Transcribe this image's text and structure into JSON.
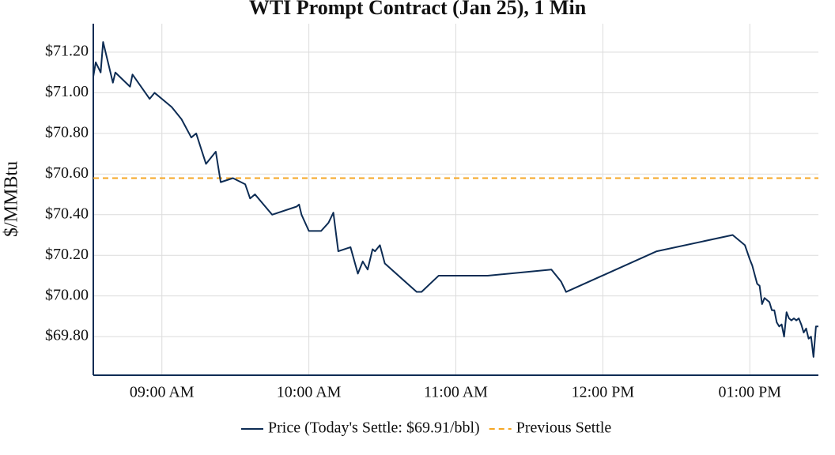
{
  "chart_data": {
    "type": "line",
    "title": "WTI Prompt Contract (Jan 25), 1 Min",
    "y_label": "$/MMBtu",
    "x": [
      "08:32",
      "08:33",
      "08:35",
      "08:36",
      "08:40",
      "08:41",
      "08:47",
      "08:48",
      "08:55",
      "08:57",
      "09:04",
      "09:08",
      "09:12",
      "09:14",
      "09:18",
      "09:22",
      "09:24",
      "09:29",
      "09:34",
      "09:36",
      "09:38",
      "09:45",
      "09:55",
      "09:56",
      "09:57",
      "10:00",
      "10:05",
      "10:08",
      "10:10",
      "10:12",
      "10:17",
      "10:20",
      "10:22",
      "10:24",
      "10:26",
      "10:27",
      "10:29",
      "10:31",
      "10:44",
      "10:46",
      "10:53",
      "11:13",
      "11:39",
      "11:43",
      "11:45",
      "12:22",
      "12:53",
      "12:58",
      "13:00",
      "13:01",
      "13:03",
      "13:04",
      "13:05",
      "13:06",
      "13:08",
      "13:09",
      "13:10",
      "13:11",
      "13:12",
      "13:13",
      "13:14",
      "13:15",
      "13:16",
      "13:17",
      "13:18",
      "13:19",
      "13:20",
      "13:21",
      "13:22",
      "13:23",
      "13:24",
      "13:25",
      "13:26",
      "13:27",
      "13:28"
    ],
    "series": [
      {
        "name": "Price (Today's Settle: $69.91/bbl)",
        "color": "#0d2c54",
        "values": [
          71.08,
          71.15,
          71.1,
          71.25,
          71.05,
          71.1,
          71.03,
          71.09,
          70.97,
          71.0,
          70.93,
          70.87,
          70.78,
          70.8,
          70.65,
          70.71,
          70.56,
          70.58,
          70.55,
          70.48,
          70.5,
          70.4,
          70.44,
          70.45,
          70.4,
          70.32,
          70.32,
          70.36,
          70.41,
          70.22,
          70.24,
          70.11,
          70.17,
          70.13,
          70.23,
          70.22,
          70.25,
          70.16,
          70.02,
          70.02,
          70.1,
          70.1,
          70.13,
          70.07,
          70.02,
          70.22,
          70.3,
          70.25,
          70.18,
          70.15,
          70.06,
          70.05,
          69.96,
          69.99,
          69.97,
          69.93,
          69.93,
          69.87,
          69.85,
          69.86,
          69.8,
          69.92,
          69.89,
          69.88,
          69.89,
          69.88,
          69.89,
          69.86,
          69.82,
          69.84,
          69.79,
          69.8,
          69.7,
          69.85,
          69.85
        ]
      }
    ],
    "reference_lines": [
      {
        "name": "Previous Settle",
        "value": 70.58,
        "color": "#f5a623",
        "dash": true
      }
    ],
    "xlim": [
      "08:32",
      "13:28"
    ],
    "xticks": [
      {
        "value": "09:00",
        "label": "09:00 AM"
      },
      {
        "value": "10:00",
        "label": "10:00 AM"
      },
      {
        "value": "11:00",
        "label": "11:00 AM"
      },
      {
        "value": "12:00",
        "label": "12:00 PM"
      },
      {
        "value": "13:00",
        "label": "01:00 PM"
      }
    ],
    "ylim": [
      69.61,
      71.34
    ],
    "yticks": [
      {
        "value": 69.8,
        "label": "$69.80"
      },
      {
        "value": 70.0,
        "label": "$70.00"
      },
      {
        "value": 70.2,
        "label": "$70.20"
      },
      {
        "value": 70.4,
        "label": "$70.40"
      },
      {
        "value": 70.6,
        "label": "$70.60"
      },
      {
        "value": 70.8,
        "label": "$70.80"
      },
      {
        "value": 71.0,
        "label": "$71.00"
      },
      {
        "value": 71.2,
        "label": "$71.20"
      }
    ],
    "grid": true
  }
}
